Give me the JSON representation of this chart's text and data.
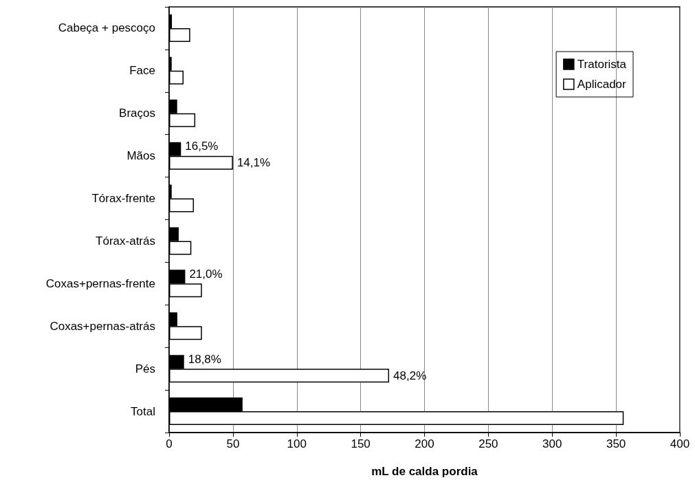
{
  "chart_data": {
    "type": "bar",
    "orientation": "horizontal",
    "xlabel": "mL de calda pordia",
    "categories": [
      "Cabeça + pescoço",
      "Face",
      "Braços",
      "Mãos",
      "Tórax-frente",
      "Tórax-atrás",
      "Coxas+pernas-frente",
      "Coxas+pernas-atrás",
      "Pés",
      "Total"
    ],
    "series": [
      {
        "name": "Tratorista",
        "color": "#000000",
        "values": [
          2.2,
          2,
          6.3,
          9.3,
          2,
          7.5,
          12.6,
          6.4,
          11.7,
          57.5
        ]
      },
      {
        "name": "Aplicador",
        "color": "#ffffff",
        "values": [
          16.5,
          11.3,
          20.5,
          50,
          19.4,
          17.4,
          25.7,
          25.7,
          172.3,
          356
        ]
      }
    ],
    "annotations": [
      {
        "text": "16,5%",
        "x": 9.3,
        "y": "Mãos"
      },
      {
        "text": "14,1%",
        "x": 50,
        "y": "Mãos"
      },
      {
        "text": "21,0%",
        "x": 12.6,
        "y": "Coxas+pernas-frente"
      },
      {
        "text": "18,8%",
        "x": 11.7,
        "y": "Pés"
      },
      {
        "text": "48,2%",
        "x": 172.3,
        "y": "Pés"
      }
    ],
    "xlim": [
      0,
      400
    ],
    "xticks": [
      0,
      50,
      100,
      150,
      200,
      250,
      300,
      350,
      400
    ],
    "grid": "x",
    "legend": "top right"
  }
}
